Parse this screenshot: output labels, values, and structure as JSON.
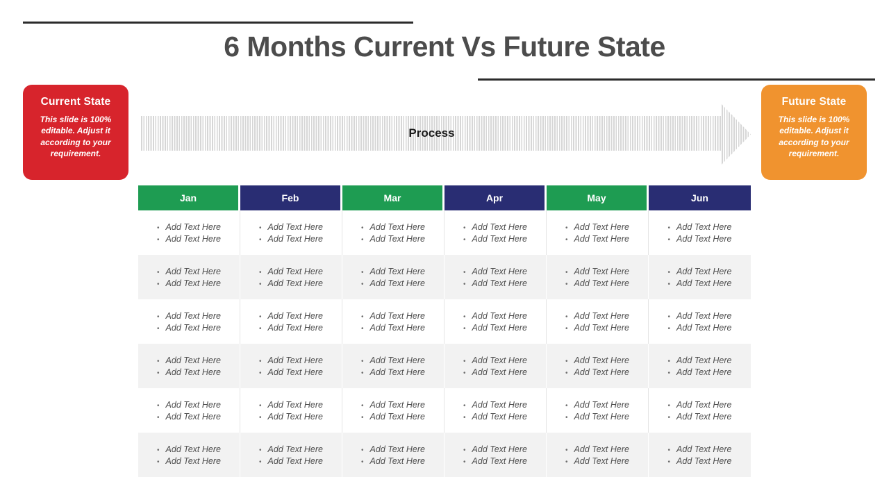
{
  "slide": {
    "title": "6 Months Current Vs Future State"
  },
  "current_state": {
    "title": "Current State",
    "body": "This slide is 100% editable. Adjust it according to your requirement."
  },
  "future_state": {
    "title": "Future State",
    "body": "This slide is 100% editable. Adjust it according to your requirement."
  },
  "process_arrow": {
    "label": "Process"
  },
  "table": {
    "months": [
      "Jan",
      "Feb",
      "Mar",
      "Apr",
      "May",
      "Jun"
    ],
    "header_styles": [
      "green",
      "navy",
      "green",
      "navy",
      "green",
      "navy"
    ],
    "body_rows": [
      {
        "cells": [
          [
            "Add Text Here",
            "Add Text Here"
          ],
          [
            "Add Text Here",
            "Add Text Here"
          ],
          [
            "Add Text Here",
            "Add Text Here"
          ],
          [
            "Add Text Here",
            "Add Text Here"
          ],
          [
            "Add Text Here",
            "Add Text Here"
          ],
          [
            "Add Text Here",
            "Add Text Here"
          ]
        ]
      },
      {
        "cells": [
          [
            "Add Text Here",
            "Add Text Here"
          ],
          [
            "Add Text Here",
            "Add Text Here"
          ],
          [
            "Add Text Here",
            "Add Text Here"
          ],
          [
            "Add Text Here",
            "Add Text Here"
          ],
          [
            "Add Text Here",
            "Add Text Here"
          ],
          [
            "Add Text Here",
            "Add Text Here"
          ]
        ]
      },
      {
        "cells": [
          [
            "Add Text Here",
            "Add Text Here"
          ],
          [
            "Add Text Here",
            "Add Text Here"
          ],
          [
            "Add Text Here",
            "Add Text Here"
          ],
          [
            "Add Text Here",
            "Add Text Here"
          ],
          [
            "Add Text Here",
            "Add Text Here"
          ],
          [
            "Add Text Here",
            "Add Text Here"
          ]
        ]
      },
      {
        "cells": [
          [
            "Add Text Here",
            "Add Text Here"
          ],
          [
            "Add Text Here",
            "Add Text Here"
          ],
          [
            "Add Text Here",
            "Add Text Here"
          ],
          [
            "Add Text Here",
            "Add Text Here"
          ],
          [
            "Add Text Here",
            "Add Text Here"
          ],
          [
            "Add Text Here",
            "Add Text Here"
          ]
        ]
      },
      {
        "cells": [
          [
            "Add Text Here",
            "Add Text Here"
          ],
          [
            "Add Text Here",
            "Add Text Here"
          ],
          [
            "Add Text Here",
            "Add Text Here"
          ],
          [
            "Add Text Here",
            "Add Text Here"
          ],
          [
            "Add Text Here",
            "Add Text Here"
          ],
          [
            "Add Text Here",
            "Add Text Here"
          ]
        ]
      },
      {
        "cells": [
          [
            "Add Text Here",
            "Add Text Here"
          ],
          [
            "Add Text Here",
            "Add Text Here"
          ],
          [
            "Add Text Here",
            "Add Text Here"
          ],
          [
            "Add Text Here",
            "Add Text Here"
          ],
          [
            "Add Text Here",
            "Add Text Here"
          ],
          [
            "Add Text Here",
            "Add Text Here"
          ]
        ]
      }
    ],
    "bullet_glyph": "•"
  },
  "colors": {
    "title_text": "#4c4c4c",
    "rule": "#2b2b2b",
    "current_state_red": "#d7242c",
    "future_state_orange": "#f0932f",
    "header_green": "#1e9c52",
    "header_navy": "#292d73",
    "stripe_gray": "#d6d6d6",
    "row_alt_gray": "#f2f2f2",
    "cell_text": "#4f4f4f"
  }
}
